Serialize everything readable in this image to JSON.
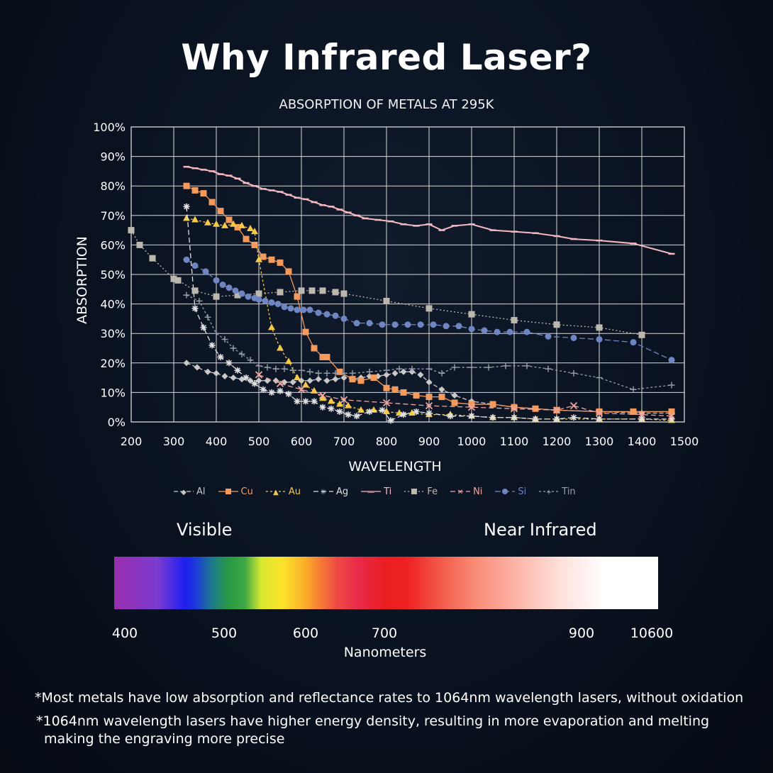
{
  "header": {
    "title": "Why Infrared Laser?"
  },
  "chart_data": {
    "type": "line",
    "title": "ABSORPTION OF METALS AT 295K",
    "xlabel": "WAVELENGTH",
    "ylabel": "ABSORPTION",
    "xlim": [
      200,
      1500
    ],
    "ylim": [
      0,
      100
    ],
    "x_ticks": [
      "200",
      "300",
      "400",
      "500",
      "600",
      "700",
      "800",
      "900",
      "1000",
      "1100",
      "1200",
      "1300",
      "1400",
      "1500"
    ],
    "y_ticks": [
      "0%",
      "10%",
      "20%",
      "30%",
      "40%",
      "50%",
      "60%",
      "70%",
      "80%",
      "90%",
      "100%"
    ],
    "grid": true,
    "legend_position": "bottom",
    "series": [
      {
        "name": "Al",
        "color": "#c9c9c9",
        "marker": "diamond",
        "dash": "6,3",
        "points": [
          [
            330,
            20
          ],
          [
            355,
            18.5
          ],
          [
            380,
            17
          ],
          [
            400,
            16.5
          ],
          [
            420,
            15.5
          ],
          [
            440,
            15
          ],
          [
            460,
            14.5
          ],
          [
            480,
            14
          ],
          [
            500,
            14
          ],
          [
            520,
            14
          ],
          [
            540,
            14
          ],
          [
            560,
            13.5
          ],
          [
            580,
            13.5
          ],
          [
            600,
            14
          ],
          [
            620,
            14
          ],
          [
            640,
            14.5
          ],
          [
            660,
            14
          ],
          [
            680,
            14.5
          ],
          [
            700,
            15
          ],
          [
            720,
            14.5
          ],
          [
            740,
            15
          ],
          [
            760,
            15.5
          ],
          [
            780,
            15.5
          ],
          [
            800,
            16
          ],
          [
            820,
            16.5
          ],
          [
            840,
            17
          ],
          [
            860,
            17
          ],
          [
            880,
            16
          ],
          [
            900,
            13.5
          ],
          [
            930,
            11
          ],
          [
            960,
            9
          ],
          [
            1000,
            7
          ],
          [
            1050,
            6
          ],
          [
            1100,
            5
          ],
          [
            1150,
            4.5
          ],
          [
            1200,
            4
          ],
          [
            1300,
            3.5
          ],
          [
            1400,
            3
          ],
          [
            1470,
            3
          ]
        ]
      },
      {
        "name": "Cu",
        "color": "#f39a5c",
        "marker": "square",
        "dash": "",
        "points": [
          [
            330,
            80
          ],
          [
            350,
            78.5
          ],
          [
            370,
            77.5
          ],
          [
            390,
            74.5
          ],
          [
            410,
            71.5
          ],
          [
            430,
            68.5
          ],
          [
            450,
            66
          ],
          [
            470,
            62
          ],
          [
            490,
            60
          ],
          [
            510,
            56
          ],
          [
            530,
            55
          ],
          [
            550,
            54
          ],
          [
            570,
            51
          ],
          [
            590,
            42.5
          ],
          [
            610,
            30.5
          ],
          [
            630,
            25
          ],
          [
            650,
            22
          ],
          [
            660,
            22
          ],
          [
            690,
            17
          ],
          [
            720,
            14.5
          ],
          [
            740,
            14
          ],
          [
            770,
            15
          ],
          [
            800,
            11.5
          ],
          [
            820,
            11
          ],
          [
            840,
            10
          ],
          [
            870,
            9
          ],
          [
            900,
            8.5
          ],
          [
            930,
            8.5
          ],
          [
            960,
            6.5
          ],
          [
            1000,
            6
          ],
          [
            1050,
            6
          ],
          [
            1100,
            5
          ],
          [
            1150,
            4.5
          ],
          [
            1200,
            4
          ],
          [
            1300,
            3.5
          ],
          [
            1380,
            3.5
          ],
          [
            1470,
            3.5
          ]
        ]
      },
      {
        "name": "Au",
        "color": "#f7c948",
        "marker": "triangle",
        "dash": "3,3",
        "points": [
          [
            330,
            69
          ],
          [
            350,
            68.5
          ],
          [
            380,
            67.5
          ],
          [
            400,
            67
          ],
          [
            420,
            66.5
          ],
          [
            440,
            67
          ],
          [
            460,
            66.5
          ],
          [
            480,
            65.5
          ],
          [
            490,
            64.5
          ],
          [
            500,
            55
          ],
          [
            530,
            32
          ],
          [
            550,
            25
          ],
          [
            570,
            20.5
          ],
          [
            590,
            15
          ],
          [
            610,
            12.5
          ],
          [
            630,
            10.5
          ],
          [
            650,
            8
          ],
          [
            670,
            7
          ],
          [
            690,
            6
          ],
          [
            710,
            5.5
          ],
          [
            740,
            4
          ],
          [
            770,
            4
          ],
          [
            800,
            3.5
          ],
          [
            830,
            3
          ],
          [
            860,
            3
          ],
          [
            900,
            2.5
          ],
          [
            950,
            2.5
          ],
          [
            1000,
            2
          ],
          [
            1050,
            1.5
          ],
          [
            1100,
            1.5
          ],
          [
            1150,
            1
          ],
          [
            1200,
            1
          ],
          [
            1300,
            1
          ],
          [
            1400,
            1
          ],
          [
            1470,
            0.5
          ]
        ]
      },
      {
        "name": "Ag",
        "color": "#e0e0e0",
        "marker": "star",
        "dash": "7,4",
        "points": [
          [
            330,
            73
          ],
          [
            350,
            38.5
          ],
          [
            370,
            32
          ],
          [
            390,
            26
          ],
          [
            410,
            22
          ],
          [
            430,
            20
          ],
          [
            450,
            17.5
          ],
          [
            470,
            15
          ],
          [
            490,
            13
          ],
          [
            510,
            11
          ],
          [
            530,
            10
          ],
          [
            550,
            10.5
          ],
          [
            570,
            9.5
          ],
          [
            590,
            7
          ],
          [
            610,
            7
          ],
          [
            630,
            7
          ],
          [
            650,
            5
          ],
          [
            670,
            4.5
          ],
          [
            690,
            3.5
          ],
          [
            710,
            2.5
          ],
          [
            730,
            2
          ],
          [
            760,
            3.5
          ],
          [
            790,
            4
          ],
          [
            810,
            0.5
          ],
          [
            840,
            2.5
          ],
          [
            870,
            3.5
          ],
          [
            900,
            3
          ],
          [
            950,
            2
          ],
          [
            1000,
            2
          ],
          [
            1050,
            1.5
          ],
          [
            1100,
            1.5
          ],
          [
            1150,
            1
          ],
          [
            1200,
            1
          ],
          [
            1240,
            1.5
          ],
          [
            1300,
            1
          ],
          [
            1400,
            1
          ],
          [
            1470,
            1
          ]
        ]
      },
      {
        "name": "Ti",
        "color": "#f6b9c0",
        "marker": "dash",
        "dash": "",
        "points": [
          [
            330,
            86.5
          ],
          [
            350,
            86
          ],
          [
            370,
            85.5
          ],
          [
            390,
            85
          ],
          [
            410,
            84
          ],
          [
            430,
            83.5
          ],
          [
            450,
            82.5
          ],
          [
            470,
            81
          ],
          [
            490,
            80
          ],
          [
            510,
            79
          ],
          [
            530,
            78.5
          ],
          [
            550,
            78
          ],
          [
            570,
            77
          ],
          [
            590,
            76
          ],
          [
            610,
            75.5
          ],
          [
            630,
            74.5
          ],
          [
            650,
            73.5
          ],
          [
            670,
            73
          ],
          [
            690,
            72
          ],
          [
            710,
            71
          ],
          [
            730,
            70
          ],
          [
            750,
            69
          ],
          [
            780,
            68.5
          ],
          [
            810,
            68
          ],
          [
            840,
            67
          ],
          [
            870,
            66.5
          ],
          [
            900,
            67
          ],
          [
            930,
            65
          ],
          [
            960,
            66.5
          ],
          [
            1000,
            67
          ],
          [
            1050,
            65
          ],
          [
            1100,
            64.5
          ],
          [
            1150,
            64
          ],
          [
            1200,
            63
          ],
          [
            1240,
            62
          ],
          [
            1300,
            61.5
          ],
          [
            1380,
            60.5
          ],
          [
            1470,
            57
          ]
        ]
      },
      {
        "name": "Fe",
        "color": "#bdb8ae",
        "marker": "square",
        "dash": "2,3",
        "points": [
          [
            200,
            65
          ],
          [
            220,
            60
          ],
          [
            250,
            55.5
          ],
          [
            300,
            48.5
          ],
          [
            310,
            48
          ],
          [
            350,
            44.5
          ],
          [
            400,
            42.5
          ],
          [
            450,
            43
          ],
          [
            500,
            43.5
          ],
          [
            550,
            44
          ],
          [
            600,
            44.5
          ],
          [
            625,
            44.5
          ],
          [
            650,
            44.5
          ],
          [
            680,
            44
          ],
          [
            700,
            43.5
          ],
          [
            800,
            41
          ],
          [
            900,
            38.5
          ],
          [
            1000,
            36.5
          ],
          [
            1100,
            34.5
          ],
          [
            1200,
            33
          ],
          [
            1300,
            32
          ],
          [
            1400,
            29.5
          ]
        ]
      },
      {
        "name": "Ni",
        "color": "#f1a5a0",
        "marker": "cross",
        "dash": "7,4",
        "points": [
          [
            500,
            16
          ],
          [
            550,
            13
          ],
          [
            600,
            11
          ],
          [
            650,
            9
          ],
          [
            700,
            7.5
          ],
          [
            800,
            6.5
          ],
          [
            900,
            5.5
          ],
          [
            1000,
            5
          ],
          [
            1100,
            4.5
          ],
          [
            1200,
            4
          ],
          [
            1240,
            5.5
          ],
          [
            1300,
            3
          ],
          [
            1400,
            2.5
          ],
          [
            1470,
            2
          ]
        ]
      },
      {
        "name": "Si",
        "color": "#6f86c2",
        "marker": "circle",
        "dash": "8,4",
        "points": [
          [
            330,
            55
          ],
          [
            350,
            53
          ],
          [
            375,
            51
          ],
          [
            400,
            48
          ],
          [
            415,
            46.5
          ],
          [
            430,
            45.5
          ],
          [
            445,
            44.5
          ],
          [
            460,
            43.5
          ],
          [
            475,
            42.5
          ],
          [
            490,
            42
          ],
          [
            500,
            41.5
          ],
          [
            515,
            41
          ],
          [
            530,
            40.5
          ],
          [
            545,
            40
          ],
          [
            560,
            39
          ],
          [
            575,
            38.5
          ],
          [
            590,
            38
          ],
          [
            605,
            38
          ],
          [
            620,
            38
          ],
          [
            640,
            37
          ],
          [
            660,
            36.5
          ],
          [
            680,
            36
          ],
          [
            700,
            35
          ],
          [
            730,
            33.5
          ],
          [
            760,
            33.5
          ],
          [
            790,
            33
          ],
          [
            820,
            33
          ],
          [
            850,
            33
          ],
          [
            880,
            33
          ],
          [
            910,
            33
          ],
          [
            940,
            32.5
          ],
          [
            970,
            32.5
          ],
          [
            1000,
            31.5
          ],
          [
            1030,
            31
          ],
          [
            1060,
            30.5
          ],
          [
            1090,
            30.5
          ],
          [
            1130,
            30.5
          ],
          [
            1180,
            29
          ],
          [
            1240,
            28.5
          ],
          [
            1300,
            28
          ],
          [
            1380,
            27
          ],
          [
            1470,
            21
          ]
        ]
      },
      {
        "name": "Tin",
        "color": "#9aa0aa",
        "marker": "plus",
        "dash": "3,3",
        "points": [
          [
            330,
            43
          ],
          [
            360,
            41
          ],
          [
            380,
            35.5
          ],
          [
            400,
            30
          ],
          [
            420,
            28
          ],
          [
            440,
            25
          ],
          [
            460,
            23
          ],
          [
            480,
            21
          ],
          [
            500,
            19
          ],
          [
            520,
            18.5
          ],
          [
            540,
            18
          ],
          [
            560,
            18
          ],
          [
            580,
            17.5
          ],
          [
            600,
            17.5
          ],
          [
            620,
            17
          ],
          [
            640,
            16.5
          ],
          [
            660,
            16.5
          ],
          [
            680,
            16.5
          ],
          [
            700,
            16.5
          ],
          [
            720,
            16.5
          ],
          [
            760,
            17
          ],
          [
            800,
            17.5
          ],
          [
            830,
            18
          ],
          [
            860,
            18
          ],
          [
            900,
            18
          ],
          [
            930,
            16.5
          ],
          [
            960,
            18.5
          ],
          [
            1000,
            18.5
          ],
          [
            1040,
            18.5
          ],
          [
            1080,
            19
          ],
          [
            1130,
            19
          ],
          [
            1180,
            18
          ],
          [
            1240,
            16.5
          ],
          [
            1300,
            15
          ],
          [
            1380,
            11
          ],
          [
            1470,
            12.5
          ]
        ]
      }
    ]
  },
  "spectrum": {
    "visible_label": "Visible",
    "nir_label": "Near Infrared",
    "ticks": [
      "400",
      "500",
      "600",
      "700",
      "900",
      "10600"
    ],
    "axis_label": "Nanometers"
  },
  "notes": {
    "note1": "*Most metals have low absorption and reflectance rates to 1064nm wavelength lasers, without oxidation",
    "note2_line1": "*1064nm wavelength lasers have higher energy density, resulting in more evaporation and melting",
    "note2_line2": "making the engraving more precise"
  }
}
